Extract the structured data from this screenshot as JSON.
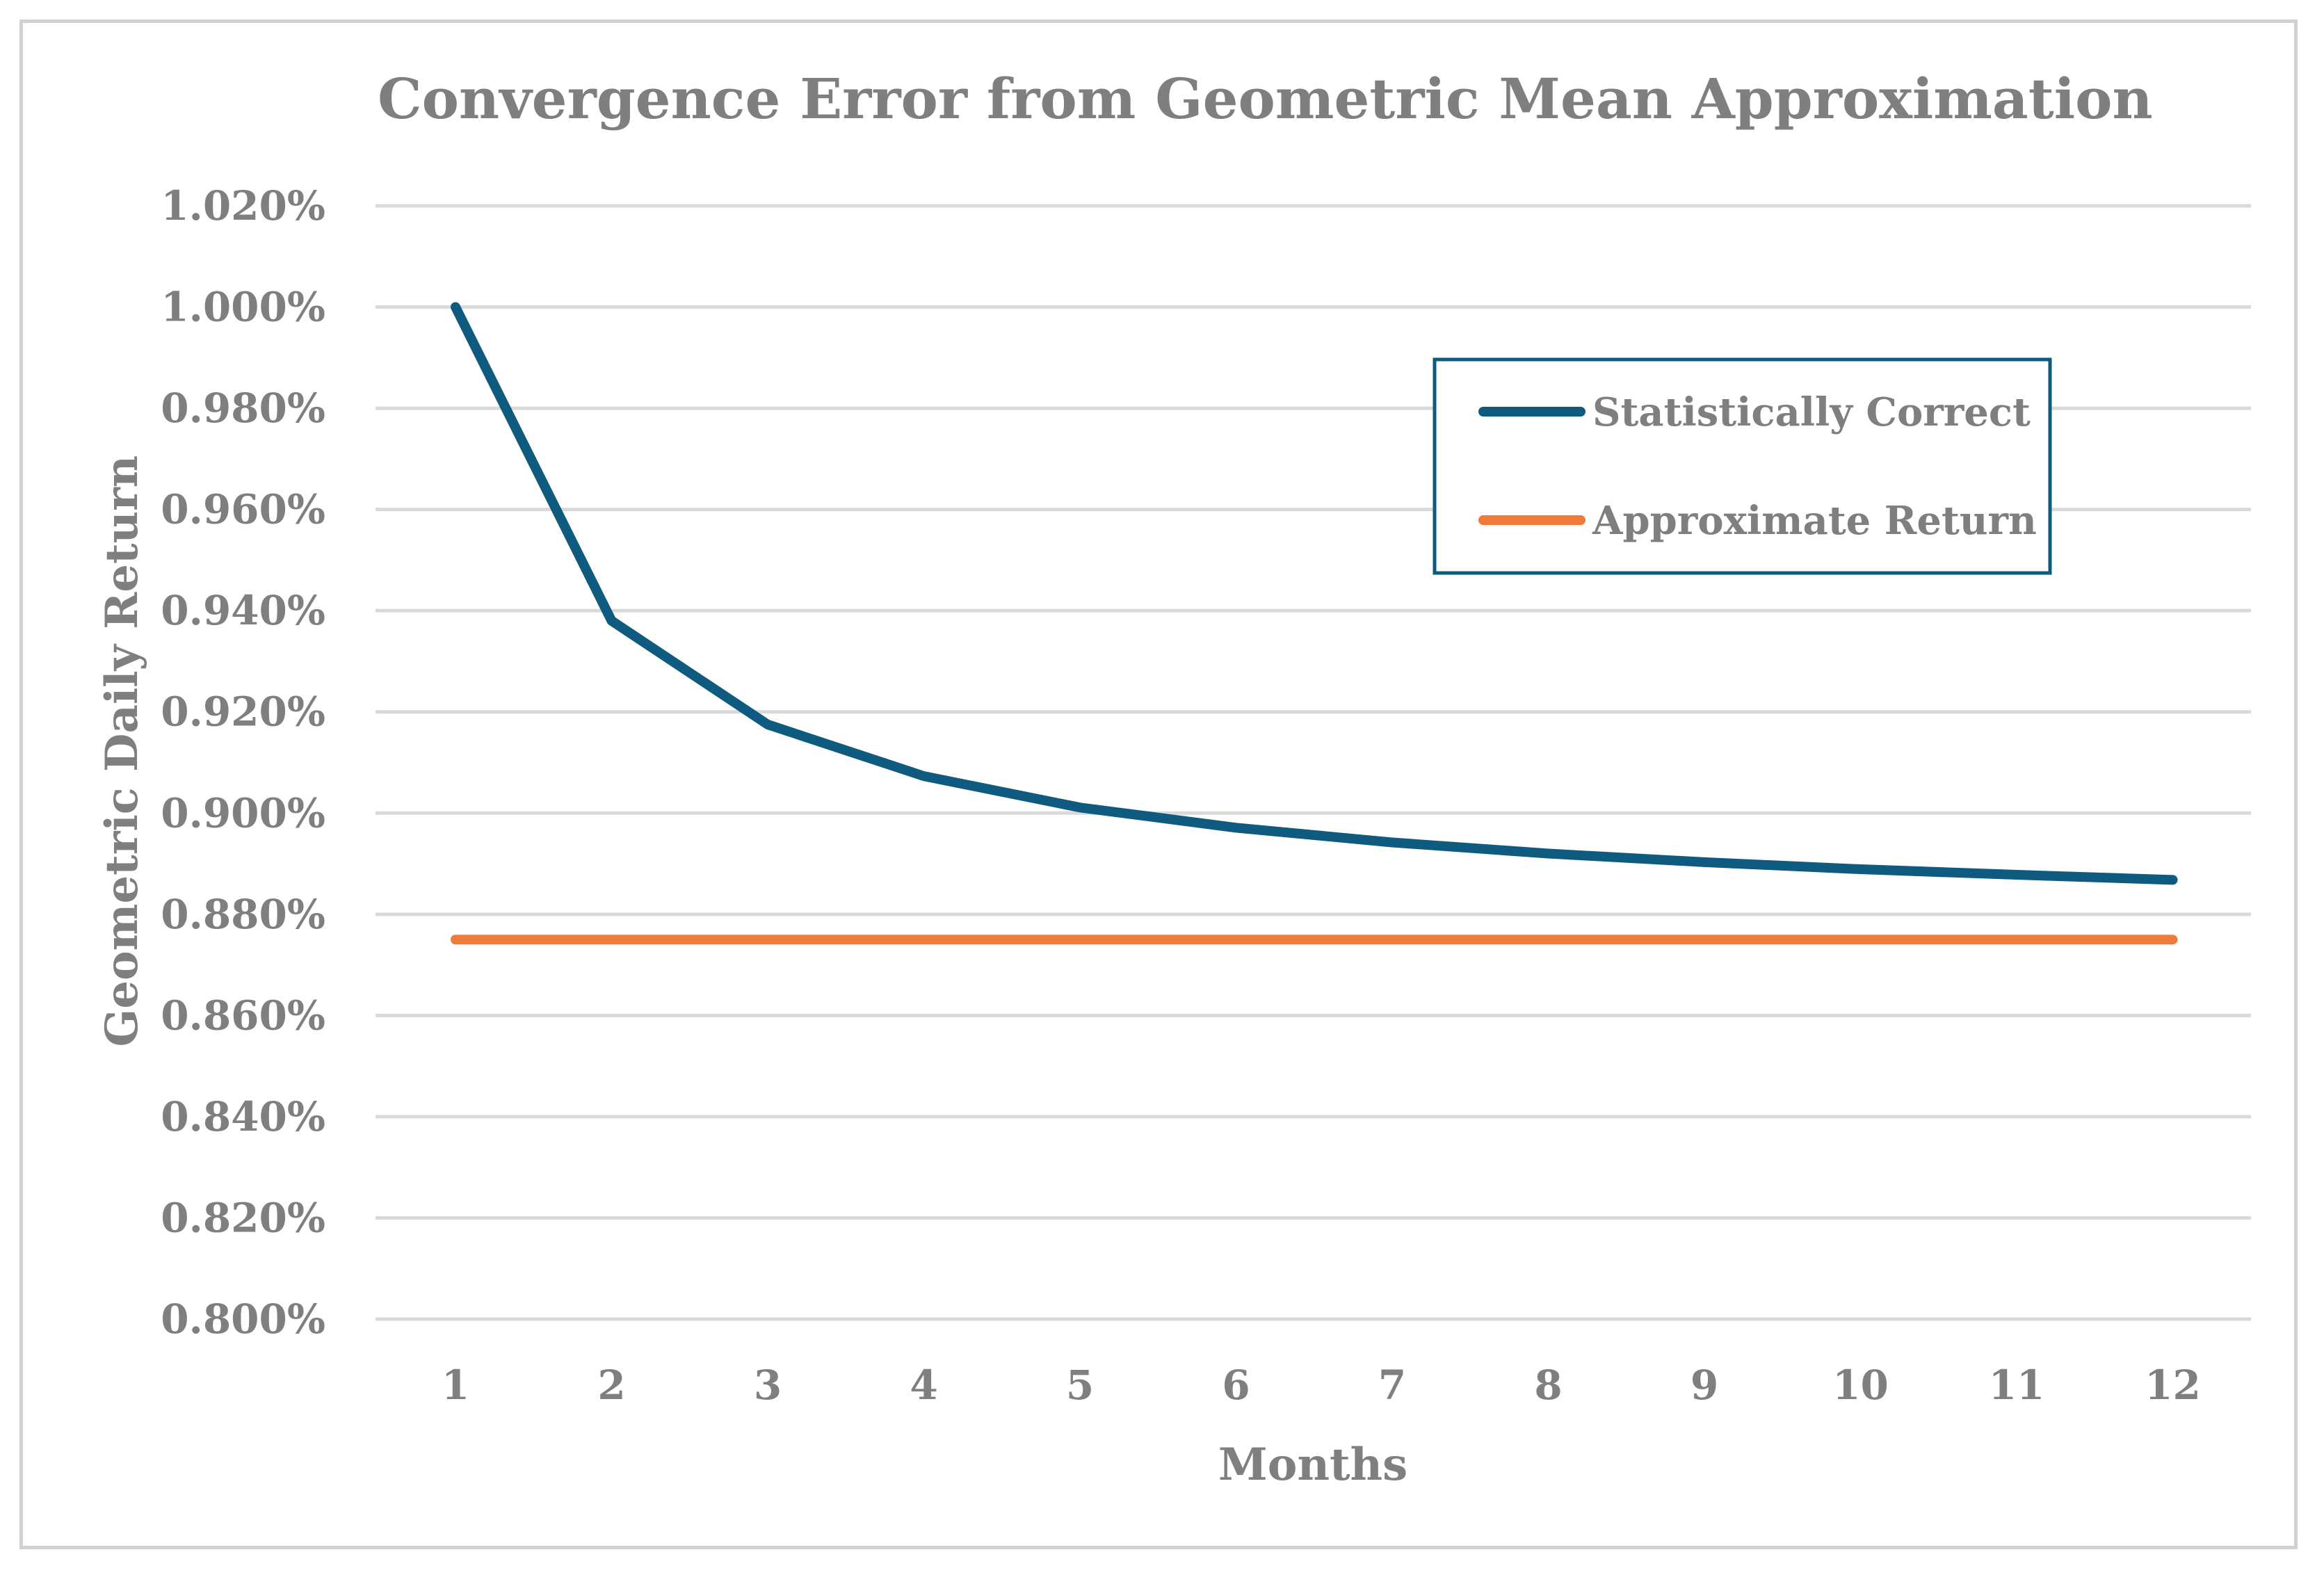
{
  "chart_data": {
    "type": "line",
    "title": "Convergence Error from Geometric Mean Approximation",
    "xlabel": "Months",
    "ylabel": "Geometric Daily Return",
    "categories": [
      "1",
      "2",
      "3",
      "4",
      "5",
      "6",
      "7",
      "8",
      "9",
      "10",
      "11",
      "12"
    ],
    "ylim": [
      0.8,
      1.02
    ],
    "yticks": [
      0.8,
      0.82,
      0.84,
      0.86,
      0.88,
      0.9,
      0.92,
      0.94,
      0.96,
      0.98,
      1.0,
      1.02
    ],
    "ytick_labels": [
      "0.800%",
      "0.820%",
      "0.840%",
      "0.860%",
      "0.880%",
      "0.900%",
      "0.920%",
      "0.940%",
      "0.960%",
      "0.980%",
      "1.000%",
      "1.020%"
    ],
    "grid": true,
    "legend_position": "top-right",
    "series": [
      {
        "name": "Statistically Correct",
        "color": "#0f5a7f",
        "values": [
          1.0,
          0.938,
          0.9175,
          0.9073,
          0.9011,
          0.8971,
          0.8942,
          0.892,
          0.8903,
          0.8889,
          0.8878,
          0.8868
        ]
      },
      {
        "name": "Approximate Return",
        "color": "#f07a3a",
        "values": [
          0.875,
          0.875,
          0.875,
          0.875,
          0.875,
          0.875,
          0.875,
          0.875,
          0.875,
          0.875,
          0.875,
          0.875
        ]
      }
    ]
  }
}
